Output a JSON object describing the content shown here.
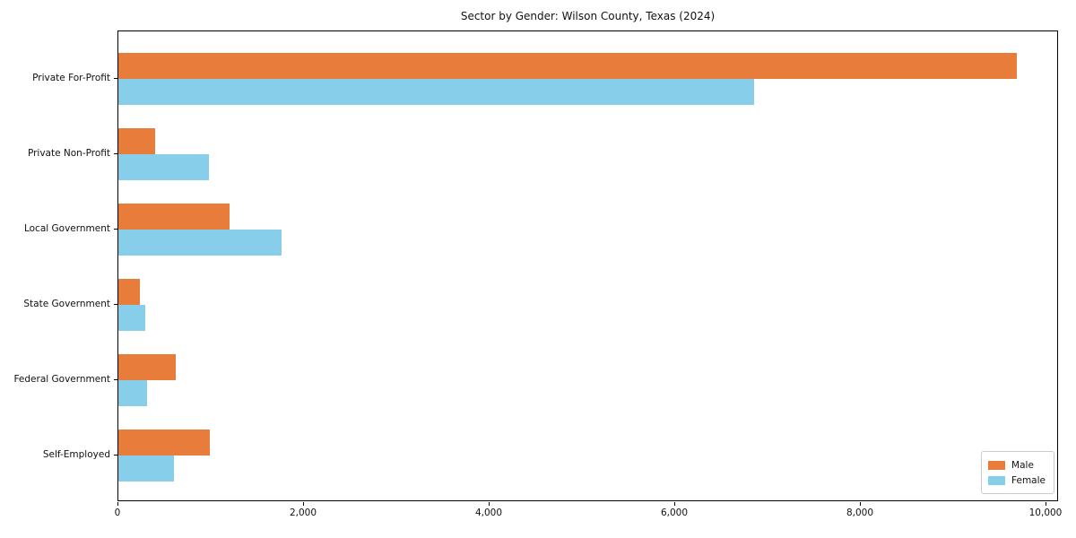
{
  "chart_data": {
    "type": "bar",
    "orientation": "horizontal",
    "title": "Sector by Gender: Wilson County, Texas (2024)",
    "categories": [
      "Private For-Profit",
      "Private Non-Profit",
      "Local Government",
      "State Government",
      "Federal Government",
      "Self-Employed"
    ],
    "series": [
      {
        "name": "Male",
        "color": "#E87D3B",
        "values": [
          9680,
          395,
          1200,
          230,
          620,
          990
        ]
      },
      {
        "name": "Female",
        "color": "#87CEEB",
        "values": [
          6850,
          980,
          1755,
          290,
          305,
          600
        ]
      }
    ],
    "xlim": [
      0,
      10000
    ],
    "x_ticks": [
      0,
      2000,
      4000,
      6000,
      8000,
      10000
    ],
    "x_tick_labels": [
      "0",
      "2,000",
      "4,000",
      "6,000",
      "8,000",
      "10,000"
    ],
    "legend": {
      "position": "lower right"
    },
    "grid": false,
    "frame": "full-box"
  }
}
